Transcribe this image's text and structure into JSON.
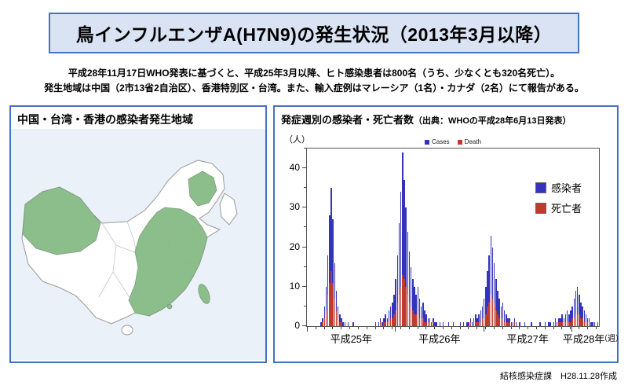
{
  "page": {
    "title": "鳥インフルエンザA(H7N9)の発生状況（2013年3月以降）",
    "intro_line1": "平成28年11月17日WHO発表に基づくと、平成25年3月以降、ヒト感染患者は800名（うち、少なくとも320名死亡）。",
    "intro_line2": "発生地域は中国（2市13省2自治区）、香港特別区・台湾。また、輸入症例はマレーシア（1名）・カナダ（2名）にて報告がある。",
    "footer": "結核感染症課　H28.11.28作成",
    "accent_color": "#4472c4"
  },
  "map_panel": {
    "title": "中国・台湾・香港の感染者発生地域",
    "highlight_color": "#8cbe8c",
    "sea_color": "#eaf1f8"
  },
  "chart_panel": {
    "title_main": "発症週別の感染者・死亡者数",
    "title_source": "（出典：WHOの平成28年6月13日発表）",
    "y_unit": "（人）",
    "x_unit": "（週）",
    "mini_cases_label": "Cases",
    "mini_deaths_label": "Death",
    "legend_cases_label": "感染者",
    "legend_deaths_label": "死亡者"
  },
  "chart_data": {
    "type": "bar",
    "title": "発症週別の感染者・死亡者数",
    "xlabel": "週",
    "ylabel": "人",
    "ylim": [
      0,
      45
    ],
    "yticks": [
      0,
      10,
      20,
      30,
      40
    ],
    "yticks_minor": [
      5,
      15,
      25,
      35,
      45
    ],
    "grid": false,
    "legend_position": "right-inside",
    "colors": {
      "cases": "#3333bb",
      "deaths": "#c03a30"
    },
    "weeks_note": "weekly onset counts, 2013-W01 through 2016-W24 (estimated from figure)",
    "year_boundaries": [
      0,
      52,
      104,
      156
    ],
    "x_year_labels": [
      {
        "label": "平成25年",
        "center": 26
      },
      {
        "label": "平成26年",
        "center": 78
      },
      {
        "label": "平成27年",
        "center": 130
      },
      {
        "label": "平成28年",
        "center": 163
      }
    ],
    "cases": [
      0,
      0,
      0,
      0,
      0,
      0,
      0,
      0,
      1,
      2,
      5,
      10,
      18,
      28,
      35,
      27,
      16,
      9,
      5,
      3,
      2,
      1,
      1,
      0,
      1,
      0,
      0,
      1,
      0,
      0,
      0,
      0,
      0,
      0,
      0,
      0,
      0,
      0,
      0,
      0,
      1,
      0,
      1,
      2,
      1,
      2,
      3,
      2,
      4,
      5,
      6,
      8,
      12,
      18,
      26,
      34,
      44,
      37,
      30,
      24,
      19,
      15,
      12,
      10,
      8,
      10,
      7,
      5,
      6,
      4,
      3,
      2,
      2,
      1,
      2,
      1,
      1,
      0,
      1,
      0,
      1,
      0,
      0,
      1,
      0,
      0,
      1,
      0,
      0,
      0,
      1,
      0,
      1,
      0,
      1,
      1,
      2,
      1,
      2,
      3,
      2,
      3,
      4,
      5,
      7,
      10,
      14,
      18,
      23,
      20,
      16,
      12,
      9,
      7,
      5,
      6,
      4,
      3,
      2,
      2,
      1,
      1,
      2,
      1,
      0,
      1,
      0,
      0,
      1,
      0,
      0,
      0,
      1,
      0,
      0,
      0,
      0,
      1,
      0,
      0,
      1,
      0,
      1,
      1,
      0,
      1,
      2,
      1,
      2,
      2,
      3,
      2,
      3,
      4,
      3,
      4,
      5,
      7,
      9,
      10,
      8,
      6,
      5,
      4,
      3,
      2,
      2,
      1,
      1,
      1,
      0,
      1
    ],
    "deaths": [
      0,
      0,
      0,
      0,
      0,
      0,
      0,
      0,
      0,
      1,
      2,
      4,
      8,
      11,
      14,
      11,
      7,
      4,
      2,
      1,
      1,
      0,
      0,
      0,
      0,
      0,
      0,
      0,
      0,
      0,
      0,
      0,
      0,
      0,
      0,
      0,
      0,
      0,
      0,
      0,
      0,
      0,
      0,
      1,
      0,
      1,
      1,
      1,
      1,
      2,
      2,
      3,
      4,
      6,
      8,
      10,
      13,
      12,
      10,
      8,
      6,
      5,
      4,
      3,
      3,
      3,
      2,
      2,
      2,
      1,
      1,
      1,
      1,
      0,
      1,
      0,
      0,
      0,
      0,
      0,
      0,
      0,
      0,
      0,
      0,
      0,
      0,
      0,
      0,
      0,
      0,
      0,
      0,
      0,
      0,
      0,
      1,
      0,
      1,
      1,
      1,
      1,
      1,
      2,
      2,
      3,
      5,
      6,
      8,
      7,
      6,
      4,
      3,
      2,
      2,
      2,
      1,
      1,
      1,
      1,
      0,
      0,
      1,
      0,
      0,
      0,
      0,
      0,
      0,
      0,
      0,
      0,
      0,
      0,
      0,
      0,
      0,
      0,
      0,
      0,
      0,
      0,
      0,
      0,
      0,
      0,
      1,
      0,
      1,
      1,
      1,
      1,
      1,
      1,
      1,
      1,
      2,
      2,
      3,
      3,
      3,
      2,
      2,
      1,
      1,
      1,
      1,
      0,
      0,
      0,
      0,
      0
    ]
  }
}
